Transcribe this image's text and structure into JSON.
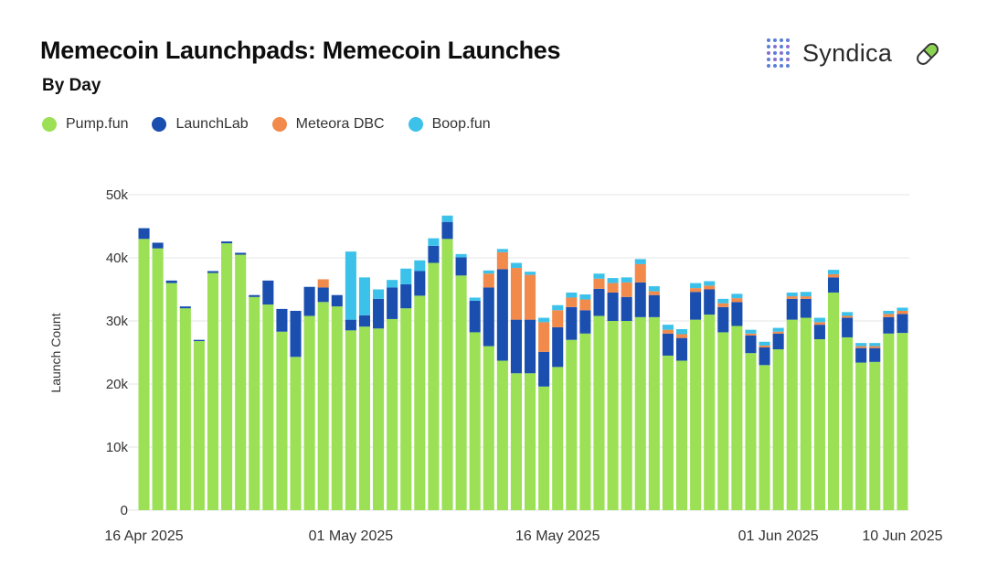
{
  "header": {
    "title": "Memecoin Launchpads: Memecoin Launches",
    "subtitle": "By Day"
  },
  "brand": {
    "name": "Syndica",
    "logo_icon": "syndica-dots-logo-icon",
    "pill_icon": "pill-icon",
    "pill_color": "#8bd450"
  },
  "colors": {
    "pump_fun": "#9be055",
    "launchlab": "#1a4fb0",
    "meteora_dbc": "#f18a4b",
    "boop_fun": "#3cc2ea",
    "grid": "#e5e5e5",
    "axis_text": "#333333"
  },
  "chart_data": {
    "type": "bar",
    "stacked": true,
    "ylabel": "Launch Count",
    "xlabel": "",
    "ylim": [
      0,
      50000
    ],
    "yticks": [
      0,
      10000,
      20000,
      30000,
      40000,
      50000
    ],
    "ytick_labels": [
      "0",
      "10k",
      "20k",
      "30k",
      "40k",
      "50k"
    ],
    "grid": true,
    "legend_position": "top-left",
    "x_start": "2025-04-16",
    "x_end": "2025-06-11",
    "xtick_labels": [
      {
        "date": "2025-04-16",
        "label": "16 Apr 2025"
      },
      {
        "date": "2025-05-01",
        "label": "01 May 2025"
      },
      {
        "date": "2025-05-16",
        "label": "16 May 2025"
      },
      {
        "date": "2025-06-01",
        "label": "01 Jun 2025"
      },
      {
        "date": "2025-06-10",
        "label": "10 Jun 2025"
      }
    ],
    "series": [
      {
        "name": "Pump.fun",
        "values": [
          43000,
          41500,
          36000,
          32000,
          26800,
          37600,
          42300,
          40500,
          33800,
          32600,
          28300,
          24300,
          30800,
          33000,
          32300,
          28500,
          29100,
          28800,
          30300,
          32000,
          34000,
          39200,
          43000,
          37200,
          28200,
          26000,
          23700,
          21700,
          21700,
          19600,
          22700,
          27000,
          28000,
          30800,
          30000,
          30000,
          30600,
          30600,
          24500,
          23700,
          30200,
          31000,
          28200,
          29200,
          24900,
          23000,
          25500,
          30200,
          30500,
          27100,
          34500,
          27400,
          23400,
          23500,
          28000,
          28100
        ]
      },
      {
        "name": "LaunchLab",
        "values": [
          1700,
          900,
          400,
          300,
          200,
          300,
          300,
          300,
          300,
          3800,
          3600,
          7300,
          4600,
          2300,
          1800,
          1700,
          1800,
          4700,
          5000,
          3800,
          3900,
          2700,
          2700,
          2900,
          5000,
          9300,
          14500,
          8500,
          8500,
          5500,
          6300,
          5200,
          3700,
          4300,
          4500,
          3800,
          5500,
          3500,
          3500,
          3600,
          4400,
          4000,
          4000,
          3800,
          2800,
          2800,
          2500,
          3300,
          3000,
          2300,
          2400,
          3100,
          2300,
          2200,
          2600,
          3000
        ]
      },
      {
        "name": "Meteora DBC",
        "values": [
          0,
          0,
          0,
          0,
          0,
          0,
          0,
          0,
          0,
          0,
          0,
          0,
          0,
          1300,
          0,
          0,
          0,
          0,
          0,
          0,
          0,
          0,
          0,
          0,
          0,
          2200,
          2700,
          8200,
          7100,
          4700,
          2700,
          1500,
          1700,
          1600,
          1500,
          2300,
          2900,
          600,
          600,
          600,
          600,
          600,
          600,
          600,
          300,
          300,
          300,
          400,
          400,
          400,
          500,
          300,
          300,
          300,
          500,
          500
        ]
      },
      {
        "name": "Boop.fun",
        "values": [
          0,
          0,
          0,
          0,
          0,
          0,
          0,
          0,
          0,
          0,
          0,
          0,
          0,
          0,
          0,
          10800,
          6000,
          1500,
          1200,
          2500,
          1700,
          1200,
          1000,
          500,
          500,
          500,
          500,
          800,
          500,
          700,
          800,
          800,
          800,
          800,
          800,
          800,
          800,
          800,
          800,
          800,
          800,
          700,
          700,
          700,
          600,
          600,
          600,
          600,
          700,
          700,
          700,
          600,
          500,
          500,
          500,
          500
        ]
      }
    ]
  }
}
